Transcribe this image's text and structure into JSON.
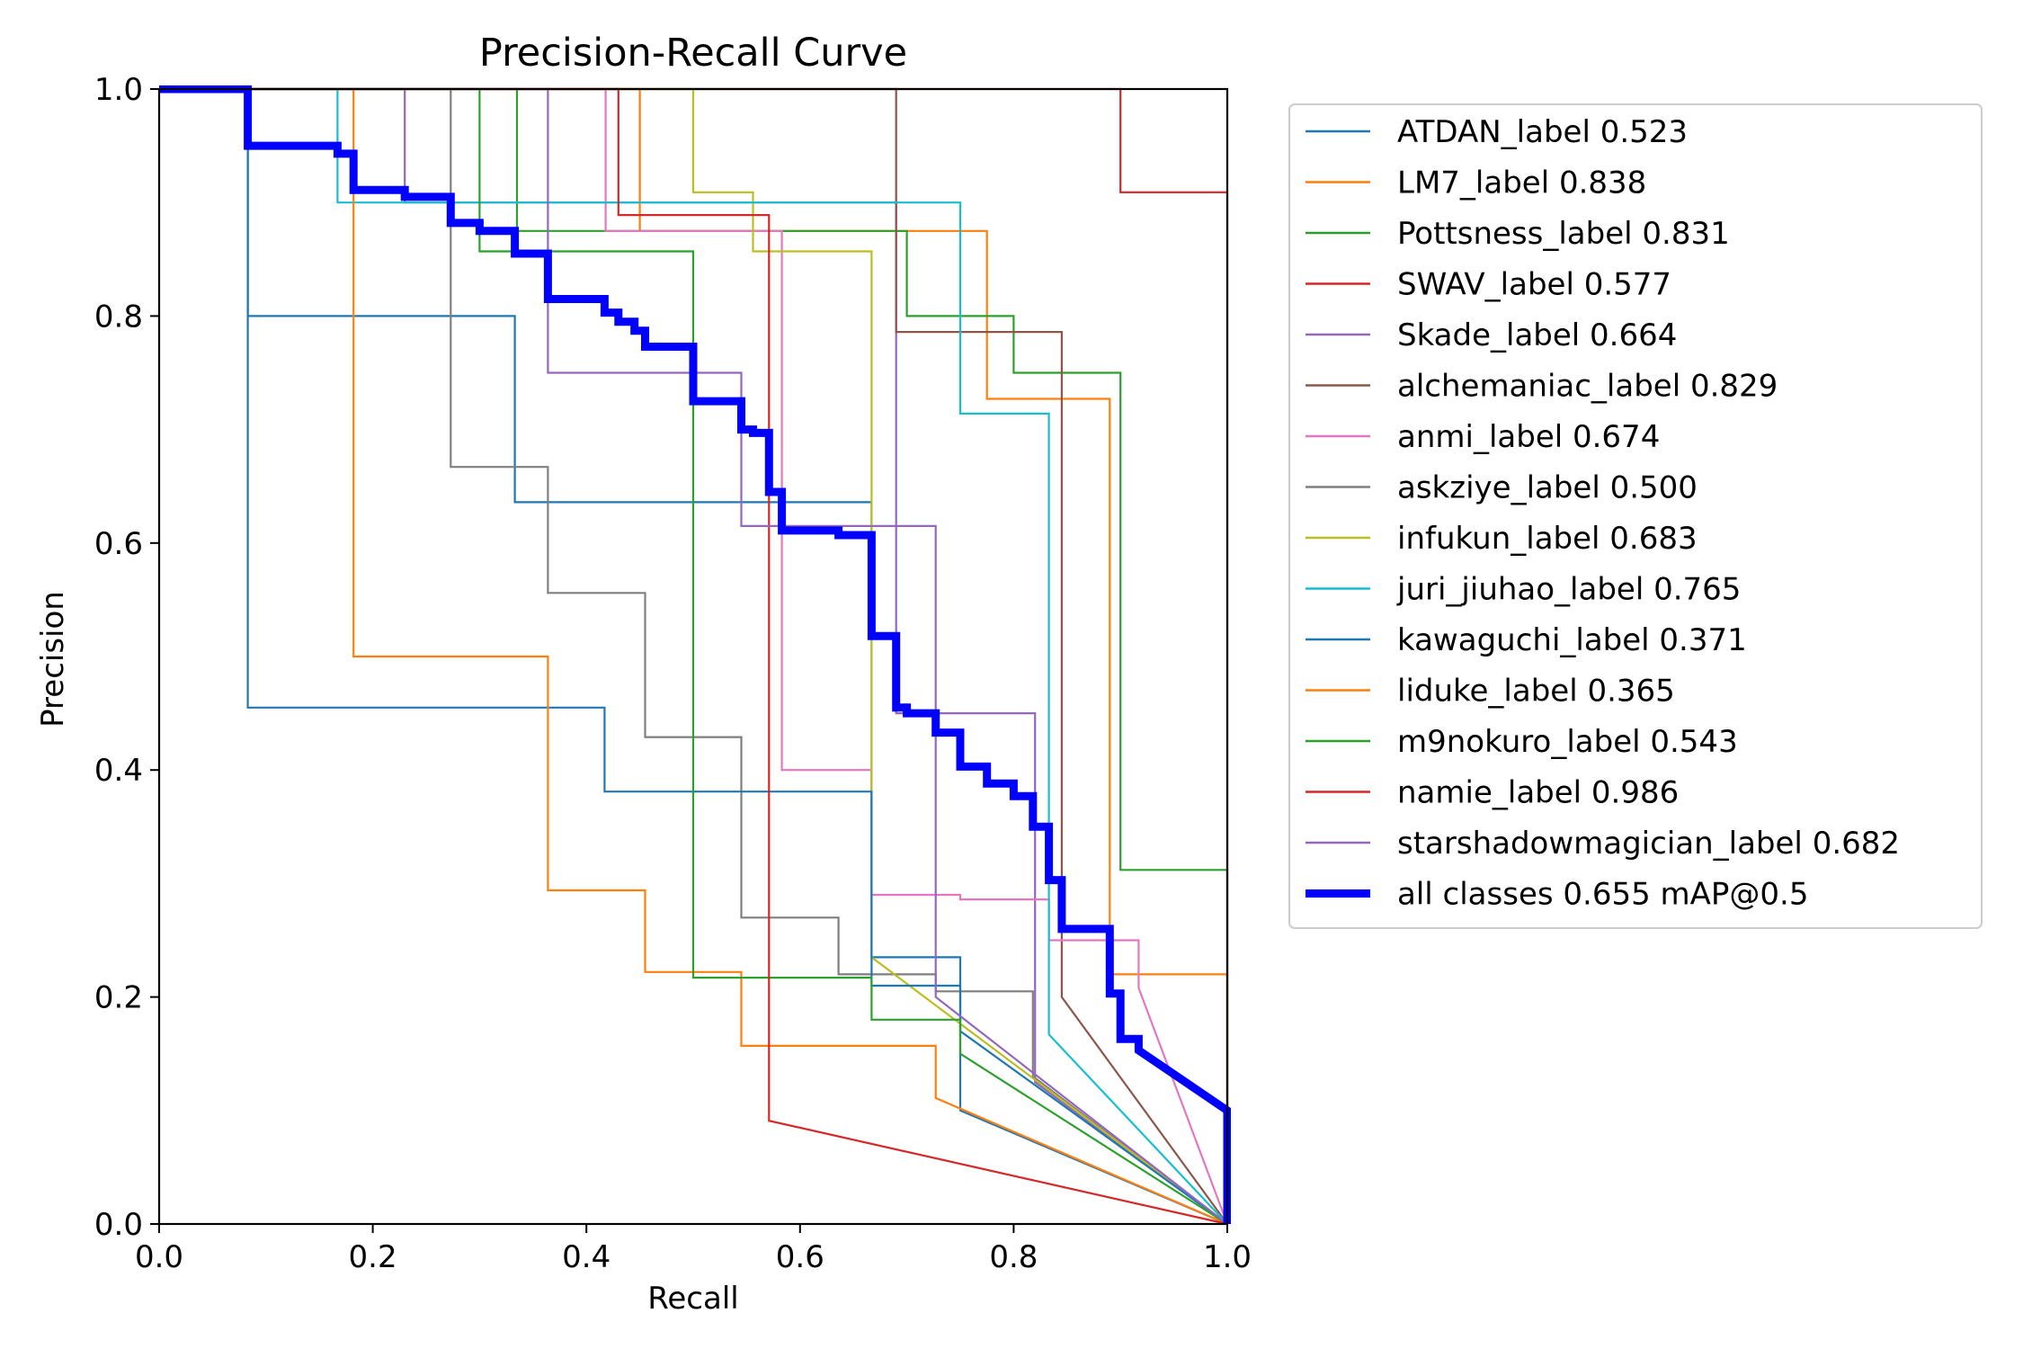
{
  "chart_data": {
    "type": "line",
    "title": "Precision-Recall Curve",
    "xlabel": "Recall",
    "ylabel": "Precision",
    "xlim": [
      0,
      1
    ],
    "ylim": [
      0,
      1
    ],
    "xticks": [
      "0.0",
      "0.2",
      "0.4",
      "0.6",
      "0.8",
      "1.0"
    ],
    "yticks": [
      "0.0",
      "0.2",
      "0.4",
      "0.6",
      "0.8",
      "1.0"
    ],
    "grid": false,
    "legend_position": "outside-right",
    "series": [
      {
        "name": "ATDAN_label 0.523",
        "color": "#1f77b4",
        "points": [
          [
            0,
            1
          ],
          [
            0.083,
            1
          ],
          [
            0.083,
            0.8
          ],
          [
            0.333,
            0.8
          ],
          [
            0.333,
            0.636
          ],
          [
            0.667,
            0.636
          ],
          [
            0.667,
            0.235
          ],
          [
            0.75,
            0.235
          ],
          [
            0.75,
            0.1
          ],
          [
            1,
            0
          ]
        ]
      },
      {
        "name": "LM7_label 0.838",
        "color": "#ff7f0e",
        "points": [
          [
            0,
            1
          ],
          [
            0.45,
            1
          ],
          [
            0.45,
            0.875
          ],
          [
            0.775,
            0.875
          ],
          [
            0.775,
            0.727
          ],
          [
            0.89,
            0.727
          ],
          [
            0.89,
            0.22
          ],
          [
            1,
            0.22
          ],
          [
            1,
            0
          ]
        ]
      },
      {
        "name": "Pottsness_label 0.831",
        "color": "#2ca02c",
        "points": [
          [
            0,
            1
          ],
          [
            0.335,
            1
          ],
          [
            0.335,
            0.875
          ],
          [
            0.7,
            0.875
          ],
          [
            0.7,
            0.8
          ],
          [
            0.8,
            0.8
          ],
          [
            0.8,
            0.75
          ],
          [
            0.9,
            0.75
          ],
          [
            0.9,
            0.312
          ],
          [
            1,
            0.312
          ],
          [
            1,
            0
          ]
        ]
      },
      {
        "name": "SWAV_label 0.577",
        "color": "#d62728",
        "points": [
          [
            0,
            1
          ],
          [
            0.9,
            1
          ],
          [
            0.9,
            0.909
          ],
          [
            1,
            0.909
          ],
          [
            1,
            0
          ]
        ]
      },
      {
        "name": "Skade_label 0.664",
        "color": "#9467bd",
        "points": [
          [
            0,
            1
          ],
          [
            0.23,
            1
          ],
          [
            0.23,
            0.9
          ],
          [
            0.69,
            0.9
          ],
          [
            0.69,
            0.45
          ],
          [
            0.82,
            0.45
          ],
          [
            0.82,
            0.125
          ],
          [
            1,
            0
          ]
        ]
      },
      {
        "name": "alchemaniac_label 0.829",
        "color": "#8c564b",
        "points": [
          [
            0,
            1
          ],
          [
            0.69,
            1
          ],
          [
            0.69,
            0.786
          ],
          [
            0.845,
            0.786
          ],
          [
            0.845,
            0.2
          ],
          [
            1,
            0
          ]
        ]
      },
      {
        "name": "anmi_label 0.674",
        "color": "#e377c2",
        "points": [
          [
            0,
            1
          ],
          [
            0.418,
            1
          ],
          [
            0.418,
            0.875
          ],
          [
            0.583,
            0.875
          ],
          [
            0.583,
            0.4
          ],
          [
            0.667,
            0.4
          ],
          [
            0.667,
            0.29
          ],
          [
            0.75,
            0.29
          ],
          [
            0.75,
            0.286
          ],
          [
            0.833,
            0.286
          ],
          [
            0.833,
            0.25
          ],
          [
            0.917,
            0.25
          ],
          [
            0.917,
            0.208
          ],
          [
            1,
            0
          ]
        ]
      },
      {
        "name": "askziye_label 0.500",
        "color": "#7f7f7f",
        "points": [
          [
            0,
            1
          ],
          [
            0.273,
            1
          ],
          [
            0.273,
            0.667
          ],
          [
            0.364,
            0.667
          ],
          [
            0.364,
            0.556
          ],
          [
            0.455,
            0.556
          ],
          [
            0.455,
            0.429
          ],
          [
            0.545,
            0.429
          ],
          [
            0.545,
            0.27
          ],
          [
            0.636,
            0.27
          ],
          [
            0.636,
            0.22
          ],
          [
            0.727,
            0.22
          ],
          [
            0.727,
            0.205
          ],
          [
            0.818,
            0.205
          ],
          [
            0.818,
            0.13
          ],
          [
            1,
            0
          ]
        ]
      },
      {
        "name": "infukun_label 0.683",
        "color": "#bcbd22",
        "points": [
          [
            0,
            1
          ],
          [
            0.5,
            1
          ],
          [
            0.5,
            0.909
          ],
          [
            0.556,
            0.909
          ],
          [
            0.556,
            0.857
          ],
          [
            0.667,
            0.857
          ],
          [
            0.667,
            0.235
          ],
          [
            1,
            0
          ]
        ]
      },
      {
        "name": "juri_jiuhao_label 0.765",
        "color": "#17becf",
        "points": [
          [
            0,
            1
          ],
          [
            0.167,
            1
          ],
          [
            0.167,
            0.9
          ],
          [
            0.75,
            0.9
          ],
          [
            0.75,
            0.714
          ],
          [
            0.833,
            0.714
          ],
          [
            0.833,
            0.167
          ],
          [
            1,
            0
          ]
        ]
      },
      {
        "name": "kawaguchi_label 0.371",
        "color": "#1f77b4",
        "points": [
          [
            0,
            1
          ],
          [
            0.083,
            1
          ],
          [
            0.083,
            0.455
          ],
          [
            0.417,
            0.455
          ],
          [
            0.417,
            0.381
          ],
          [
            0.667,
            0.381
          ],
          [
            0.667,
            0.21
          ],
          [
            0.75,
            0.21
          ],
          [
            0.75,
            0.17
          ],
          [
            1,
            0
          ]
        ]
      },
      {
        "name": "liduke_label 0.365",
        "color": "#ff7f0e",
        "points": [
          [
            0,
            1
          ],
          [
            0.182,
            1
          ],
          [
            0.182,
            0.5
          ],
          [
            0.364,
            0.5
          ],
          [
            0.364,
            0.294
          ],
          [
            0.455,
            0.294
          ],
          [
            0.455,
            0.222
          ],
          [
            0.545,
            0.222
          ],
          [
            0.545,
            0.157
          ],
          [
            0.727,
            0.157
          ],
          [
            0.727,
            0.111
          ],
          [
            1,
            0
          ]
        ]
      },
      {
        "name": "m9nokuro_label 0.543",
        "color": "#2ca02c",
        "points": [
          [
            0,
            1
          ],
          [
            0.3,
            1
          ],
          [
            0.3,
            0.857
          ],
          [
            0.5,
            0.857
          ],
          [
            0.5,
            0.217
          ],
          [
            0.667,
            0.217
          ],
          [
            0.667,
            0.18
          ],
          [
            0.75,
            0.18
          ],
          [
            0.75,
            0.15
          ],
          [
            1,
            0
          ]
        ]
      },
      {
        "name": "namie_label 0.986",
        "color": "#d62728",
        "points": [
          [
            0,
            1
          ],
          [
            0.43,
            1
          ],
          [
            0.43,
            0.889
          ],
          [
            0.571,
            0.889
          ],
          [
            0.571,
            0.091
          ],
          [
            1,
            0
          ]
        ]
      },
      {
        "name": "starshadowmagician_label 0.682",
        "color": "#9467bd",
        "points": [
          [
            0,
            1
          ],
          [
            0.364,
            1
          ],
          [
            0.364,
            0.75
          ],
          [
            0.545,
            0.75
          ],
          [
            0.545,
            0.615
          ],
          [
            0.727,
            0.615
          ],
          [
            0.727,
            0.2
          ],
          [
            1,
            0
          ]
        ]
      },
      {
        "name": "all classes 0.655 mAP@0.5",
        "color": "#0000ff",
        "bold": true,
        "points": [
          [
            0,
            1
          ],
          [
            0.083,
            1
          ],
          [
            0.083,
            0.95
          ],
          [
            0.167,
            0.95
          ],
          [
            0.167,
            0.943
          ],
          [
            0.182,
            0.943
          ],
          [
            0.182,
            0.911
          ],
          [
            0.23,
            0.911
          ],
          [
            0.23,
            0.905
          ],
          [
            0.273,
            0.905
          ],
          [
            0.273,
            0.882
          ],
          [
            0.3,
            0.882
          ],
          [
            0.3,
            0.875
          ],
          [
            0.333,
            0.875
          ],
          [
            0.333,
            0.855
          ],
          [
            0.364,
            0.855
          ],
          [
            0.364,
            0.815
          ],
          [
            0.417,
            0.815
          ],
          [
            0.417,
            0.803
          ],
          [
            0.43,
            0.803
          ],
          [
            0.43,
            0.795
          ],
          [
            0.445,
            0.795
          ],
          [
            0.445,
            0.787
          ],
          [
            0.455,
            0.787
          ],
          [
            0.455,
            0.773
          ],
          [
            0.5,
            0.773
          ],
          [
            0.5,
            0.725
          ],
          [
            0.545,
            0.725
          ],
          [
            0.545,
            0.7
          ],
          [
            0.556,
            0.7
          ],
          [
            0.556,
            0.697
          ],
          [
            0.571,
            0.697
          ],
          [
            0.571,
            0.645
          ],
          [
            0.583,
            0.645
          ],
          [
            0.583,
            0.611
          ],
          [
            0.636,
            0.611
          ],
          [
            0.636,
            0.607
          ],
          [
            0.667,
            0.607
          ],
          [
            0.667,
            0.518
          ],
          [
            0.69,
            0.518
          ],
          [
            0.69,
            0.455
          ],
          [
            0.7,
            0.455
          ],
          [
            0.7,
            0.45
          ],
          [
            0.727,
            0.45
          ],
          [
            0.727,
            0.433
          ],
          [
            0.75,
            0.433
          ],
          [
            0.75,
            0.403
          ],
          [
            0.775,
            0.403
          ],
          [
            0.775,
            0.388
          ],
          [
            0.8,
            0.388
          ],
          [
            0.8,
            0.377
          ],
          [
            0.818,
            0.377
          ],
          [
            0.818,
            0.35
          ],
          [
            0.833,
            0.35
          ],
          [
            0.833,
            0.303
          ],
          [
            0.845,
            0.303
          ],
          [
            0.845,
            0.26
          ],
          [
            0.89,
            0.26
          ],
          [
            0.89,
            0.203
          ],
          [
            0.9,
            0.203
          ],
          [
            0.9,
            0.163
          ],
          [
            0.917,
            0.163
          ],
          [
            0.917,
            0.153
          ],
          [
            1,
            0.1
          ],
          [
            1,
            0
          ]
        ]
      }
    ]
  }
}
